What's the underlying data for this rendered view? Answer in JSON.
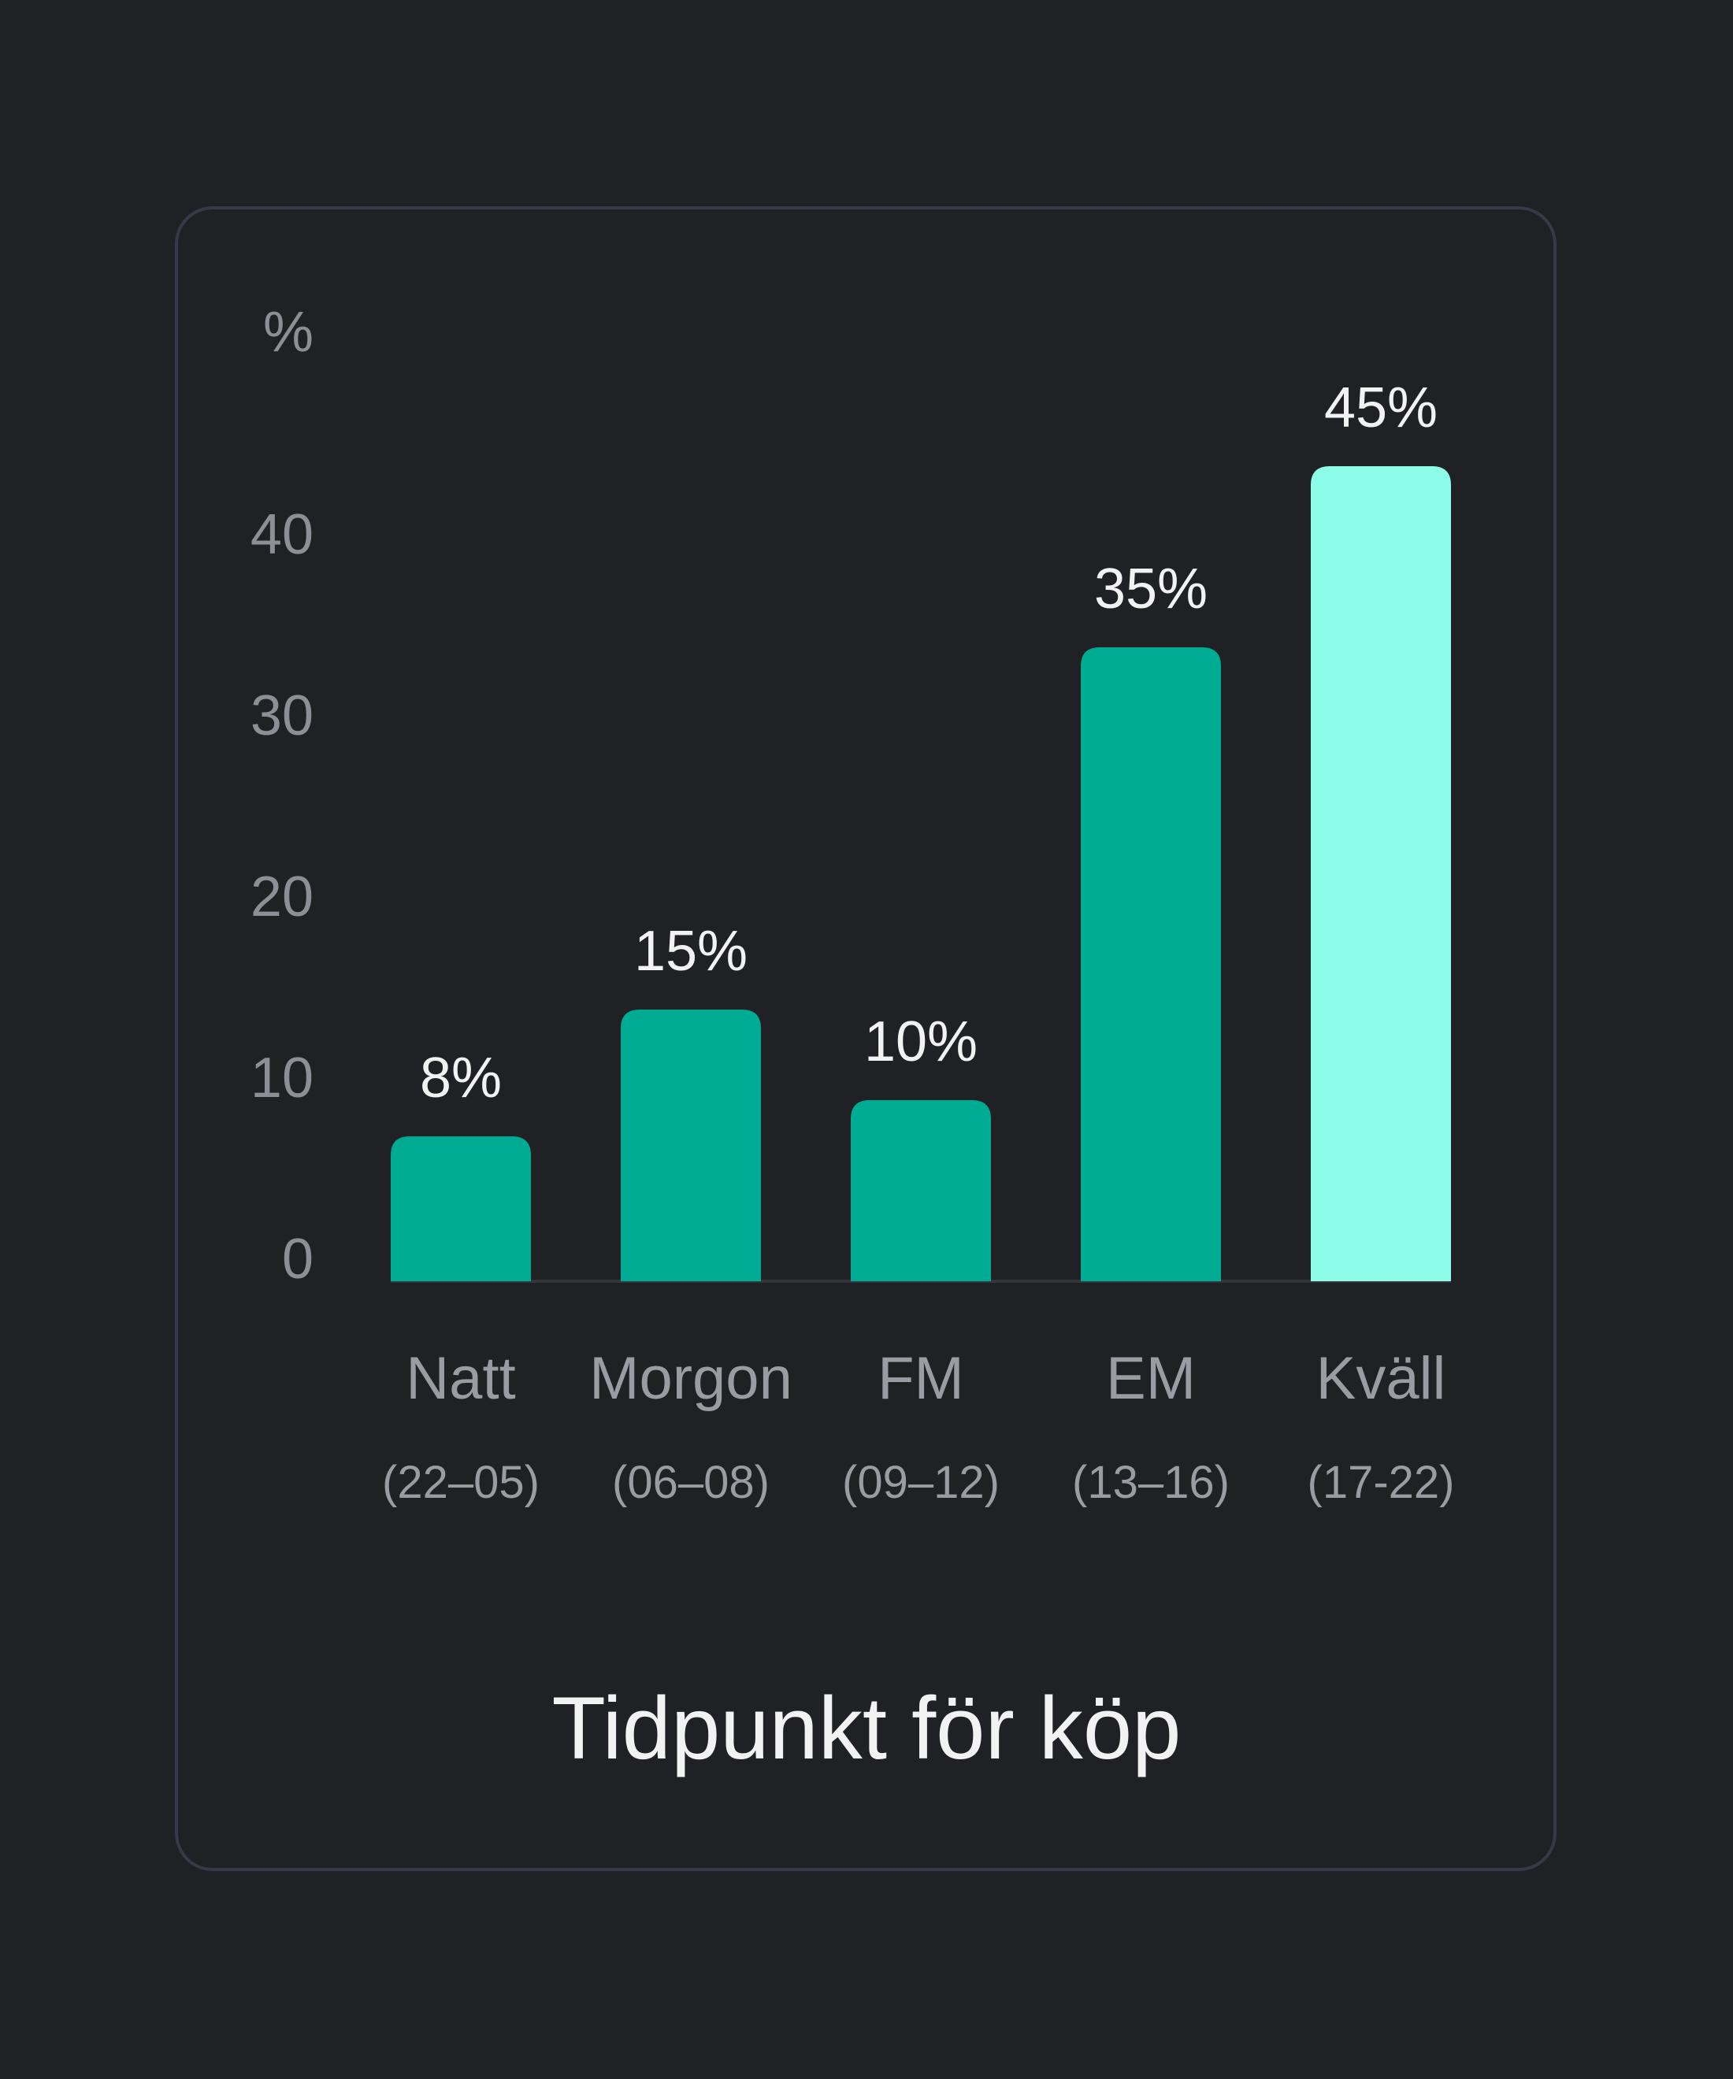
{
  "chart_data": {
    "type": "bar",
    "title": "Tidpunkt för köp",
    "ylabel": "%",
    "ylim": [
      0,
      45
    ],
    "yticks": [
      0,
      10,
      20,
      30,
      40
    ],
    "grid": false,
    "categories": [
      "Natt",
      "Morgon",
      "FM",
      "EM",
      "Kväll"
    ],
    "category_sublabels": [
      "(22–05)",
      "(06–08)",
      "(09–12)",
      "(13–16)",
      "(17-22)"
    ],
    "values": [
      8,
      15,
      10,
      35,
      45
    ],
    "value_labels": [
      "8%",
      "15%",
      "10%",
      "35%",
      "45%"
    ],
    "colors": {
      "default": "#00ab93",
      "highlight": "#8cfce8",
      "baseline": "#33353b"
    },
    "highlight_index": 4
  }
}
